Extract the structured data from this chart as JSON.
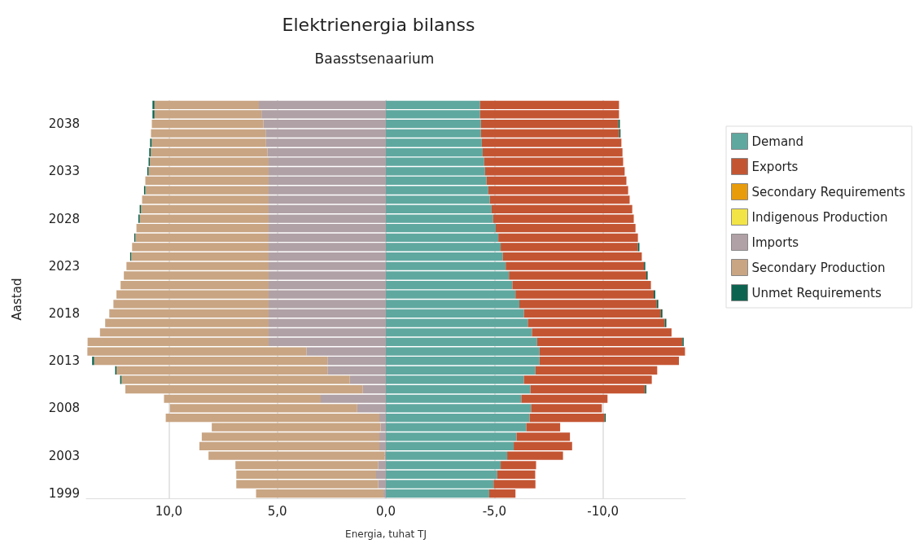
{
  "chart_data": {
    "type": "bar",
    "orientation": "horizontal",
    "stacked": true,
    "title": "Elektrienergia bilanss",
    "subtitle": "Baasstsenaarium",
    "xlabel": "Energia, tuhat TJ",
    "ylabel": "Aastad",
    "categories": [
      null,
      null,
      "2038",
      null,
      null,
      null,
      null,
      "2033",
      null,
      null,
      null,
      null,
      "2028",
      null,
      null,
      null,
      null,
      "2023",
      null,
      null,
      null,
      null,
      "2018",
      null,
      null,
      null,
      null,
      "2013",
      null,
      null,
      null,
      null,
      "2008",
      null,
      null,
      null,
      null,
      "2003",
      null,
      null,
      null,
      "1999"
    ],
    "xlim": [
      13.8,
      -13.8
    ],
    "xticks": [
      {
        "value": 10,
        "label": "10,0"
      },
      {
        "value": 5,
        "label": "5,0"
      },
      {
        "value": 0,
        "label": "0,0"
      },
      {
        "value": -5,
        "label": "-5,0"
      },
      {
        "value": -10,
        "label": "-10,0"
      }
    ],
    "grid": "x",
    "legend": "right",
    "series": [
      {
        "name": "Demand",
        "color": "#5fa8a0",
        "values": [
          -4.34,
          -4.34,
          -4.38,
          -4.38,
          -4.42,
          -4.46,
          -4.53,
          -4.57,
          -4.64,
          -4.72,
          -4.79,
          -4.87,
          -4.94,
          -5.06,
          -5.18,
          -5.29,
          -5.39,
          -5.52,
          -5.67,
          -5.83,
          -5.97,
          -6.15,
          -6.36,
          -6.54,
          -6.73,
          -6.97,
          -7.08,
          -7.08,
          -6.89,
          -6.36,
          -6.66,
          -6.24,
          -6.69,
          -6.62,
          -6.47,
          -6.02,
          -5.89,
          -5.59,
          -5.29,
          -5.13,
          -4.96,
          -4.76
        ]
      },
      {
        "name": "Exports",
        "color": "#c45533",
        "values": [
          -6.4,
          -6.4,
          -6.33,
          -6.37,
          -6.43,
          -6.44,
          -6.4,
          -6.43,
          -6.44,
          -6.44,
          -6.44,
          -6.48,
          -6.48,
          -6.44,
          -6.43,
          -6.32,
          -6.4,
          -6.37,
          -6.33,
          -6.38,
          -6.37,
          -6.33,
          -6.31,
          -6.31,
          -6.43,
          -6.69,
          -6.7,
          -6.42,
          -5.61,
          -5.89,
          -5.28,
          -3.97,
          -3.26,
          -3.46,
          -1.56,
          -2.46,
          -2.69,
          -2.57,
          -1.63,
          -1.75,
          -1.93,
          -1.21
        ]
      },
      {
        "name": "Secondary Requirements",
        "color": "#e89c0c",
        "values": [
          null,
          null,
          null,
          null,
          null,
          null,
          null,
          null,
          null,
          null,
          null,
          null,
          null,
          null,
          null,
          null,
          null,
          null,
          null,
          null,
          null,
          null,
          null,
          null,
          null,
          null,
          null,
          null,
          null,
          null,
          null,
          null,
          null,
          null,
          null,
          null,
          null,
          null,
          null,
          null,
          null,
          null
        ]
      },
      {
        "name": "Indigenous Production",
        "color": "#f2e446",
        "values": [
          null,
          null,
          null,
          null,
          null,
          null,
          null,
          null,
          null,
          null,
          null,
          null,
          null,
          null,
          null,
          null,
          null,
          null,
          null,
          null,
          null,
          null,
          null,
          null,
          null,
          null,
          null,
          null,
          null,
          null,
          null,
          null,
          null,
          null,
          null,
          null,
          null,
          null,
          null,
          null,
          null,
          null
        ]
      },
      {
        "name": "Imports",
        "color": "#b0a1a6",
        "values": [
          5.85,
          5.73,
          5.64,
          5.54,
          5.52,
          5.46,
          5.4,
          5.4,
          5.4,
          5.4,
          5.4,
          5.4,
          5.4,
          5.4,
          5.4,
          5.4,
          5.4,
          5.4,
          5.4,
          5.4,
          5.4,
          5.4,
          5.4,
          5.4,
          5.4,
          5.4,
          3.66,
          2.69,
          2.69,
          1.66,
          1.06,
          3.0,
          1.32,
          0.3,
          0.24,
          0.3,
          0.3,
          0.05,
          0.36,
          0.45,
          0.35,
          0.11
        ]
      },
      {
        "name": "Secondary Production",
        "color": "#c9a583",
        "values": [
          4.81,
          4.93,
          5.14,
          5.28,
          5.27,
          5.37,
          5.47,
          5.53,
          5.68,
          5.68,
          5.83,
          5.88,
          5.94,
          6.09,
          6.14,
          6.29,
          6.33,
          6.55,
          6.67,
          6.82,
          7.01,
          7.15,
          7.34,
          7.53,
          7.77,
          8.34,
          10.09,
          10.75,
          9.72,
          10.52,
          10.94,
          7.22,
          8.63,
          9.84,
          7.78,
          8.18,
          8.29,
          8.12,
          6.57,
          6.44,
          6.54,
          5.87
        ]
      },
      {
        "name": "Unmet Requirements",
        "color": "#0c6450",
        "values": [
          0.09,
          0.09,
          -0.07,
          -0.06,
          0.07,
          0.07,
          0.06,
          0.06,
          null,
          0.06,
          null,
          0.06,
          0.06,
          null,
          0.05,
          -0.07,
          0.05,
          -0.06,
          -0.06,
          null,
          -0.07,
          -0.07,
          -0.07,
          -0.07,
          null,
          -0.06,
          null,
          0.09,
          0.06,
          0.06,
          -0.06,
          null,
          null,
          -0.05,
          null,
          null,
          null,
          null,
          null,
          null,
          null,
          null
        ]
      }
    ]
  }
}
